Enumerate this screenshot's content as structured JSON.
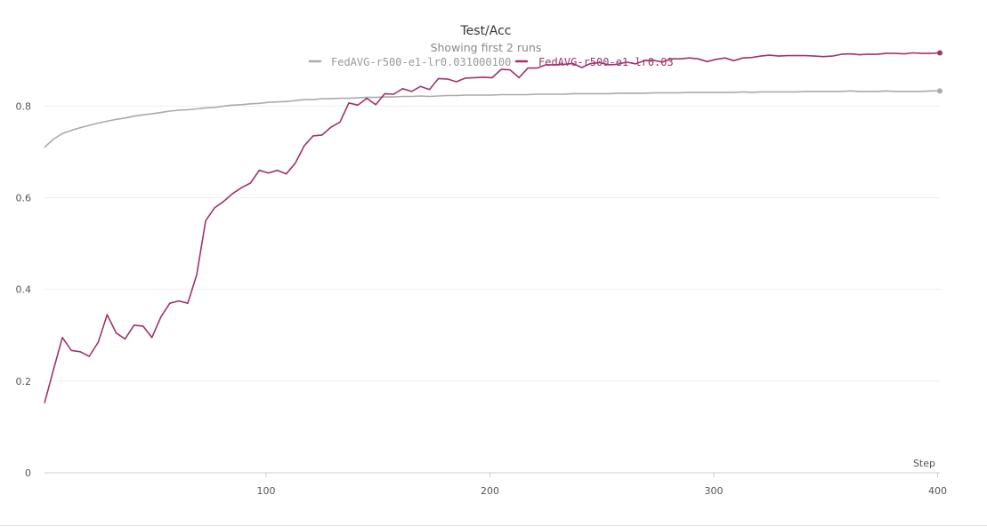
{
  "chart_data": {
    "type": "line",
    "title": "Test/Acc",
    "subtitle": "Showing first 2 runs",
    "xlabel": "Step",
    "ylabel": "",
    "xlim": [
      1,
      401
    ],
    "ylim": [
      0,
      0.95
    ],
    "xticks": [
      100,
      200,
      300,
      400
    ],
    "yticks": [
      0,
      0.2,
      0.4,
      0.6,
      0.8
    ],
    "ytick_labels": [
      "0",
      "0.2",
      "0.4",
      "0.6",
      "0.8"
    ],
    "grid": true,
    "legend_position": "top-center",
    "series": [
      {
        "name": "FedAVG-r500-e1-lr0.031000100",
        "color": "#aaaaaa",
        "x": [
          1,
          5,
          9,
          13,
          17,
          21,
          25,
          29,
          33,
          37,
          41,
          45,
          49,
          53,
          57,
          61,
          65,
          69,
          73,
          77,
          81,
          85,
          89,
          93,
          97,
          101,
          105,
          109,
          113,
          117,
          121,
          125,
          129,
          133,
          137,
          141,
          145,
          149,
          153,
          157,
          161,
          165,
          169,
          173,
          177,
          181,
          185,
          189,
          193,
          197,
          201,
          205,
          209,
          213,
          217,
          221,
          225,
          229,
          233,
          237,
          241,
          245,
          249,
          253,
          257,
          261,
          265,
          269,
          273,
          277,
          281,
          285,
          289,
          293,
          297,
          301,
          305,
          309,
          313,
          317,
          321,
          325,
          329,
          333,
          337,
          341,
          345,
          349,
          353,
          357,
          361,
          365,
          369,
          373,
          377,
          381,
          385,
          389,
          393,
          397,
          401
        ],
        "values": [
          0.71,
          0.728,
          0.74,
          0.747,
          0.753,
          0.758,
          0.763,
          0.767,
          0.771,
          0.774,
          0.778,
          0.781,
          0.783,
          0.786,
          0.789,
          0.791,
          0.792,
          0.794,
          0.796,
          0.797,
          0.8,
          0.802,
          0.803,
          0.805,
          0.806,
          0.808,
          0.809,
          0.81,
          0.812,
          0.814,
          0.814,
          0.816,
          0.816,
          0.817,
          0.817,
          0.818,
          0.819,
          0.819,
          0.82,
          0.82,
          0.821,
          0.821,
          0.822,
          0.821,
          0.822,
          0.823,
          0.823,
          0.824,
          0.824,
          0.824,
          0.824,
          0.825,
          0.825,
          0.825,
          0.825,
          0.826,
          0.826,
          0.826,
          0.826,
          0.827,
          0.827,
          0.827,
          0.827,
          0.827,
          0.828,
          0.828,
          0.828,
          0.828,
          0.829,
          0.829,
          0.829,
          0.829,
          0.83,
          0.83,
          0.83,
          0.83,
          0.83,
          0.83,
          0.831,
          0.83,
          0.831,
          0.831,
          0.831,
          0.831,
          0.831,
          0.832,
          0.832,
          0.832,
          0.832,
          0.832,
          0.833,
          0.832,
          0.832,
          0.832,
          0.833,
          0.832,
          0.832,
          0.832,
          0.832,
          0.833,
          0.833
        ]
      },
      {
        "name": "FedAVG-r500-e1-lr0.03",
        "color": "#a0336a",
        "x": [
          1,
          5,
          9,
          13,
          17,
          21,
          25,
          29,
          33,
          37,
          41,
          45,
          49,
          53,
          57,
          61,
          65,
          69,
          73,
          77,
          81,
          85,
          89,
          93,
          97,
          101,
          105,
          109,
          113,
          117,
          121,
          125,
          129,
          133,
          137,
          141,
          145,
          149,
          153,
          157,
          161,
          165,
          169,
          173,
          177,
          181,
          185,
          189,
          193,
          197,
          201,
          205,
          209,
          213,
          217,
          221,
          225,
          229,
          233,
          237,
          241,
          245,
          249,
          253,
          257,
          261,
          265,
          269,
          273,
          277,
          281,
          285,
          289,
          293,
          297,
          301,
          305,
          309,
          313,
          317,
          321,
          325,
          329,
          333,
          337,
          341,
          345,
          349,
          353,
          357,
          361,
          365,
          369,
          373,
          377,
          381,
          385,
          389,
          393,
          397,
          401
        ],
        "values": [
          0.152,
          0.225,
          0.295,
          0.267,
          0.264,
          0.254,
          0.285,
          0.345,
          0.305,
          0.292,
          0.322,
          0.32,
          0.295,
          0.34,
          0.37,
          0.375,
          0.37,
          0.432,
          0.55,
          0.578,
          0.592,
          0.609,
          0.622,
          0.632,
          0.66,
          0.654,
          0.66,
          0.652,
          0.675,
          0.713,
          0.735,
          0.737,
          0.754,
          0.765,
          0.807,
          0.802,
          0.817,
          0.803,
          0.827,
          0.826,
          0.838,
          0.832,
          0.843,
          0.836,
          0.86,
          0.859,
          0.853,
          0.861,
          0.862,
          0.863,
          0.862,
          0.88,
          0.879,
          0.862,
          0.883,
          0.883,
          0.89,
          0.89,
          0.891,
          0.893,
          0.884,
          0.893,
          0.895,
          0.89,
          0.891,
          0.896,
          0.892,
          0.899,
          0.9,
          0.896,
          0.903,
          0.903,
          0.905,
          0.903,
          0.897,
          0.902,
          0.905,
          0.899,
          0.905,
          0.906,
          0.909,
          0.911,
          0.909,
          0.91,
          0.91,
          0.91,
          0.909,
          0.908,
          0.909,
          0.913,
          0.914,
          0.912,
          0.913,
          0.913,
          0.915,
          0.915,
          0.914,
          0.916,
          0.915,
          0.915,
          0.916
        ]
      }
    ]
  }
}
